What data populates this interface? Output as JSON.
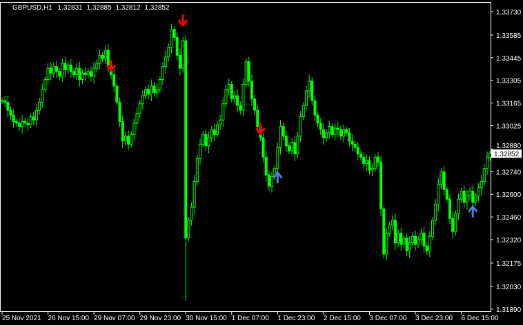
{
  "header": {
    "symbol": "GBPUSD,H1",
    "open": "1.32831",
    "high": "1.32885",
    "low": "1.32812",
    "close": "1.32852"
  },
  "colors": {
    "background": "#000000",
    "candle": "#00ff00",
    "sell_arrow": "#ff0000",
    "buy_arrow": "#4f7fd8",
    "axis": "#ffffff"
  },
  "chart_data": {
    "type": "candlestick",
    "title": "GBPUSD,H1",
    "timeframe": "H1",
    "ylim": [
      1.31877,
      1.33785
    ],
    "y_ticks": [
      "1.33730",
      "1.33585",
      "1.33445",
      "1.33305",
      "1.33165",
      "1.33025",
      "1.32880",
      "1.32740",
      "1.32600",
      "1.32460",
      "1.32320",
      "1.32175",
      "1.32030",
      "1.31890"
    ],
    "x_ticks": [
      {
        "bar": 0,
        "label": "25 Nov 2021"
      },
      {
        "bar": 16,
        "label": "26 Nov 15:00"
      },
      {
        "bar": 32,
        "label": "29 Nov 07:00"
      },
      {
        "bar": 48,
        "label": "29 Nov 23:00"
      },
      {
        "bar": 64,
        "label": "30 Nov 15:00"
      },
      {
        "bar": 80,
        "label": "1 Dec 07:00"
      },
      {
        "bar": 96,
        "label": "1 Dec 23:00"
      },
      {
        "bar": 112,
        "label": "2 Dec 15:00"
      },
      {
        "bar": 128,
        "label": "3 Dec 07:00"
      },
      {
        "bar": 144,
        "label": "3 Dec 23:00"
      },
      {
        "bar": 160,
        "label": "6 Dec 15:00"
      }
    ],
    "current_price": "1.32852",
    "closes": [
      1.3318,
      1.3317,
      1.3312,
      1.3309,
      1.3305,
      1.3304,
      1.3302,
      1.3305,
      1.3304,
      1.3303,
      1.3308,
      1.3306,
      1.3312,
      1.3317,
      1.3325,
      1.3331,
      1.3338,
      1.3335,
      1.3339,
      1.3336,
      1.3333,
      1.3341,
      1.3337,
      1.334,
      1.3336,
      1.3334,
      1.3338,
      1.3331,
      1.3335,
      1.3334,
      1.3336,
      1.3333,
      1.3338,
      1.3341,
      1.3346,
      1.3344,
      1.3349,
      1.334,
      1.3334,
      1.3327,
      1.3317,
      1.3305,
      1.3293,
      1.3296,
      1.3291,
      1.3297,
      1.3304,
      1.331,
      1.3316,
      1.3321,
      1.3325,
      1.3322,
      1.3327,
      1.3323,
      1.3325,
      1.3331,
      1.3339,
      1.3345,
      1.3351,
      1.3362,
      1.3357,
      1.3346,
      1.3338,
      1.3355,
      1.3233,
      1.3244,
      1.3252,
      1.3268,
      1.3282,
      1.3291,
      1.3297,
      1.329,
      1.3295,
      1.33,
      1.3297,
      1.3303,
      1.3306,
      1.3316,
      1.3325,
      1.3328,
      1.3319,
      1.3321,
      1.3315,
      1.3312,
      1.3328,
      1.3342,
      1.333,
      1.3319,
      1.3312,
      1.3302,
      1.3295,
      1.3283,
      1.3272,
      1.3265,
      1.3271,
      1.3276,
      1.3289,
      1.3302,
      1.3296,
      1.329,
      1.3287,
      1.3292,
      1.3285,
      1.3296,
      1.3308,
      1.3315,
      1.3324,
      1.333,
      1.3318,
      1.3309,
      1.3304,
      1.33,
      1.3295,
      1.3298,
      1.3302,
      1.3297,
      1.3301,
      1.33,
      1.3296,
      1.33,
      1.3298,
      1.3293,
      1.3291,
      1.3289,
      1.3285,
      1.3283,
      1.3279,
      1.3281,
      1.3275,
      1.3276,
      1.3283,
      1.328,
      1.3251,
      1.3223,
      1.3236,
      1.3241,
      1.3244,
      1.323,
      1.3236,
      1.3229,
      1.3233,
      1.3225,
      1.323,
      1.3234,
      1.3229,
      1.3232,
      1.3236,
      1.3228,
      1.3225,
      1.3234,
      1.3244,
      1.3254,
      1.3266,
      1.3274,
      1.3263,
      1.3257,
      1.3245,
      1.3237,
      1.3248,
      1.3257,
      1.3262,
      1.3255,
      1.3259,
      1.3262,
      1.3255,
      1.3259,
      1.3264,
      1.3268,
      1.3276,
      1.3283,
      1.32852
    ],
    "signals": [
      {
        "bar": 38,
        "type": "sell",
        "price": 1.3339
      },
      {
        "bar": 63,
        "type": "sell",
        "price": 1.3367
      },
      {
        "bar": 90,
        "type": "sell",
        "price": 1.33
      },
      {
        "bar": 96,
        "type": "buy",
        "price": 1.3271
      },
      {
        "bar": 164,
        "type": "buy",
        "price": 1.325
      }
    ],
    "grid": false
  }
}
